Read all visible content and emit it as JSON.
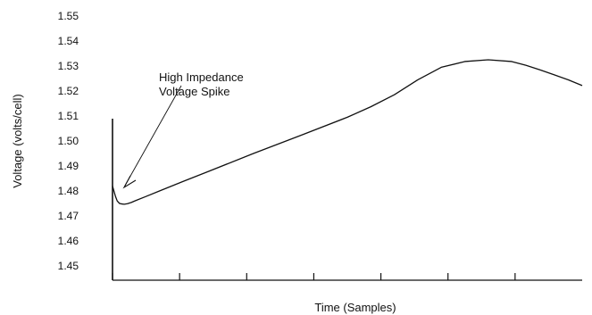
{
  "chart_data": {
    "type": "line",
    "title": "",
    "xlabel": "Time (Samples)",
    "ylabel": "Voltage (volts/cell)",
    "ylim": [
      1.45,
      1.55
    ],
    "xlim": [
      0,
      100
    ],
    "y_ticks": [
      "1.55",
      "1.54",
      "1.53",
      "1.52",
      "1.51",
      "1.50",
      "1.49",
      "1.48",
      "1.47",
      "1.46",
      "1.45"
    ],
    "x_tick_count": 7,
    "grid": false,
    "legend": "none",
    "series": [
      {
        "x": [
          0,
          0.3,
          0.6,
          1.0,
          1.5,
          2.0,
          2.5,
          3.2,
          4.0,
          5.0,
          7.0,
          10,
          15,
          20,
          30,
          40,
          50,
          55,
          60,
          65,
          70,
          75,
          80,
          85,
          88,
          91,
          94,
          97,
          100
        ],
        "values": [
          1.482,
          1.48,
          1.478,
          1.476,
          1.475,
          1.4748,
          1.4747,
          1.4749,
          1.4754,
          1.4762,
          1.4777,
          1.48,
          1.4838,
          1.4875,
          1.495,
          1.5022,
          1.5095,
          1.5137,
          1.5185,
          1.5245,
          1.5295,
          1.5318,
          1.5325,
          1.5318,
          1.5303,
          1.5285,
          1.5265,
          1.5245,
          1.5222
        ]
      }
    ],
    "annotations": [
      {
        "lines": [
          "High Impedance",
          "Voltage Spike"
        ]
      }
    ],
    "colors": {
      "line": "#111111",
      "background": "#ffffff"
    }
  }
}
